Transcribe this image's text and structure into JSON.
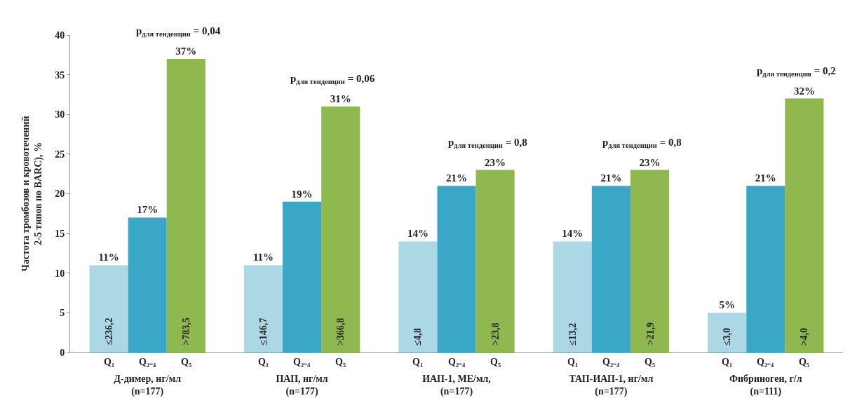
{
  "chart_data": {
    "type": "bar",
    "ylabel": "Частота тромбозов и кровотечений\n2-5 типов по BARC), %",
    "categories": [
      "Д-димер, нг/мл\n(n=177)",
      "ПАП, нг/мл\n(n=177)",
      "ИАП-1, МЕ/мл,\n(n=177)",
      "ТАП-ИАП-1, нг/мл\n(n=177)",
      "Фибриноген, г/л\n(n=111)"
    ],
    "series": [
      {
        "name": "Q₁",
        "color": "#acd8e6",
        "values": [
          11,
          11,
          14,
          14,
          5
        ],
        "value_labels": [
          "11%",
          "11%",
          "14%",
          "14%",
          "5%"
        ]
      },
      {
        "name": "Q₂₋₄",
        "color": "#3ba7c6",
        "values": [
          17,
          19,
          21,
          21,
          21
        ],
        "value_labels": [
          "17%",
          "19%",
          "21%",
          "21%",
          "21%"
        ]
      },
      {
        "name": "Q₅",
        "color": "#8fb84e",
        "values": [
          37,
          31,
          23,
          23,
          32
        ],
        "value_labels": [
          "37%",
          "31%",
          "23%",
          "23%",
          "32%"
        ]
      }
    ],
    "annotations": [
      "p$_{для тенденции}$ = 0,04",
      "p$_{для тенденции}$ = 0,06",
      "p$_{для тенденции}$ = 0,8",
      "p$_{для тенденции}$ = 0,8",
      "p$_{для тенденции}$ = 0,2",
      "≤236,2",
      ">783,5",
      "≤146,7",
      ">366,8",
      "≤4,8",
      ">23,8",
      "≤13,2",
      ">21,9",
      "≤3,0",
      ">4,0"
    ],
    "ylim": [
      0,
      40
    ],
    "yticks": [
      0,
      5,
      10,
      15,
      20,
      25,
      30,
      35,
      40
    ],
    "legend": false
  }
}
